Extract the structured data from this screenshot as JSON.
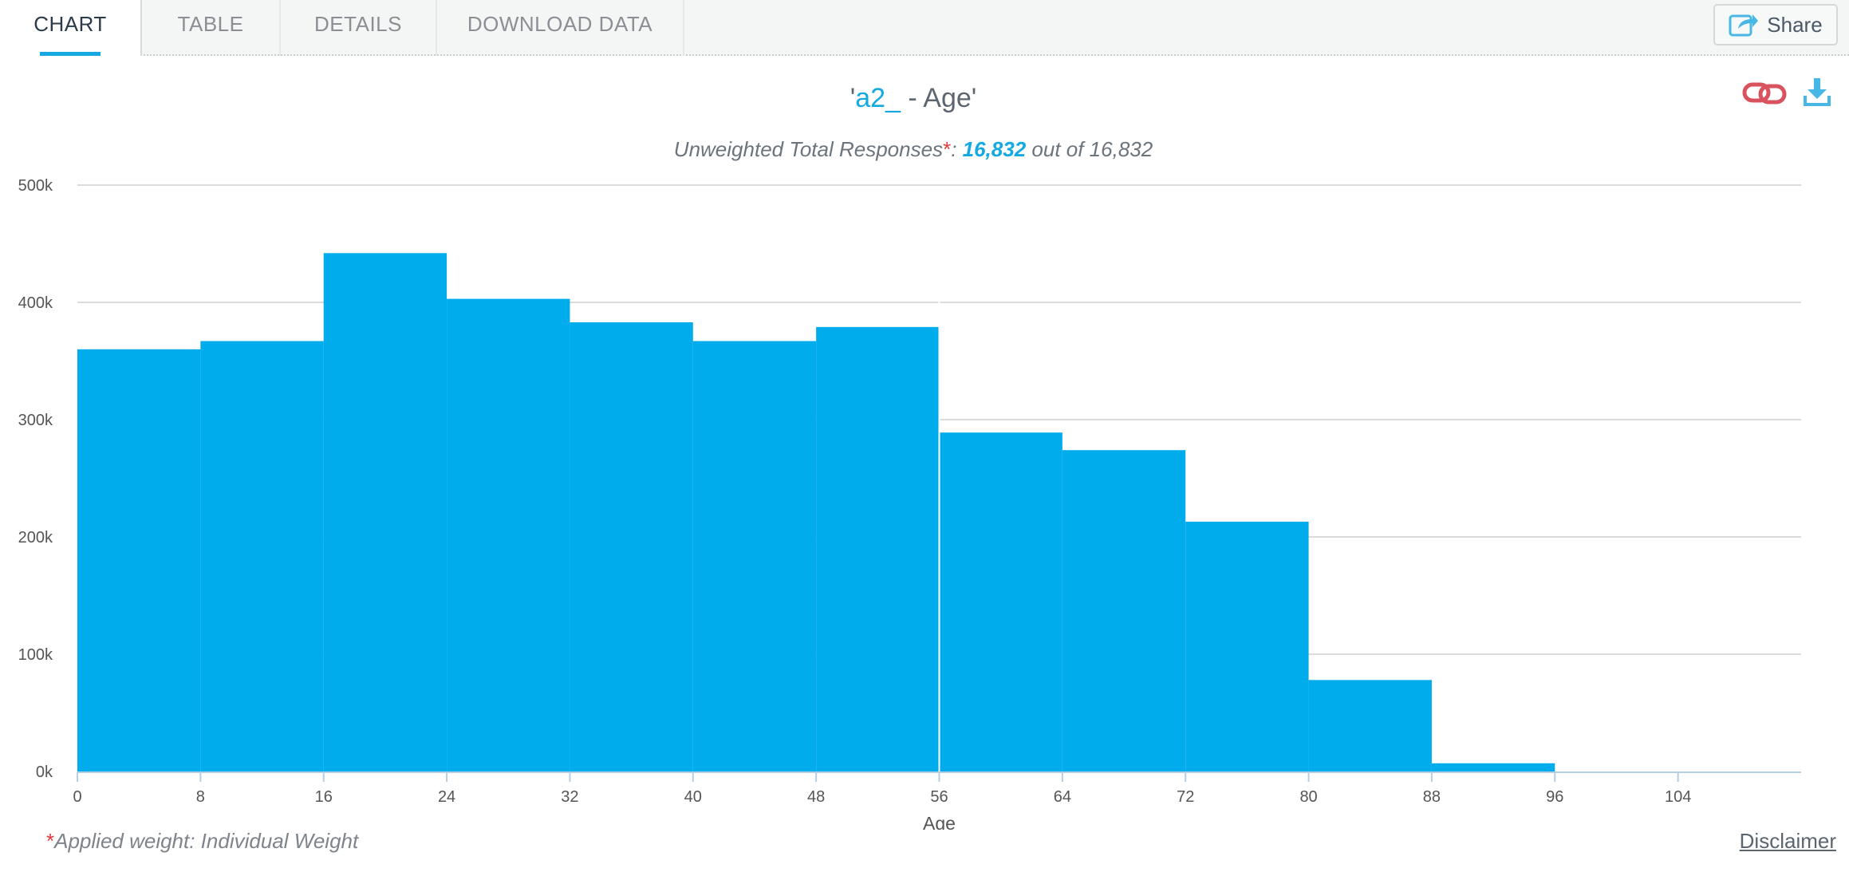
{
  "tabs": [
    {
      "label": "CHART",
      "active": true
    },
    {
      "label": "TABLE",
      "active": false
    },
    {
      "label": "DETAILS",
      "active": false
    },
    {
      "label": "DOWNLOAD DATA",
      "active": false
    }
  ],
  "share_label": "Share",
  "header": {
    "title_prefix": "'",
    "title_var": "a2_",
    "title_suffix": " - Age'",
    "subtitle_prefix": "Unweighted Total Responses",
    "subtitle_star": "*",
    "subtitle_colon": ": ",
    "subtitle_count": "16,832",
    "subtitle_rest": " out of 16,832"
  },
  "icons": {
    "link": "link-icon",
    "download": "download-icon",
    "share": "share-icon"
  },
  "colors": {
    "accent": "#14a9e0",
    "bar": "#00acec",
    "link_icon": "#d9535f",
    "star": "#e03a3a"
  },
  "chart_data": {
    "type": "bar",
    "title": "'a2_ - Age'",
    "subtitle": "Unweighted Total Responses*: 16,832 out of 16,832",
    "xlabel": "Age",
    "ylabel": "",
    "bins": [
      {
        "from": 0,
        "to": 8,
        "value": 360000
      },
      {
        "from": 8,
        "to": 16,
        "value": 367000
      },
      {
        "from": 16,
        "to": 24,
        "value": 442000
      },
      {
        "from": 24,
        "to": 32,
        "value": 403000
      },
      {
        "from": 32,
        "to": 40,
        "value": 383000
      },
      {
        "from": 40,
        "to": 48,
        "value": 367000
      },
      {
        "from": 48,
        "to": 56,
        "value": 379000
      },
      {
        "from": 56,
        "to": 64,
        "value": 289000
      },
      {
        "from": 64,
        "to": 72,
        "value": 274000
      },
      {
        "from": 72,
        "to": 80,
        "value": 213000
      },
      {
        "from": 80,
        "to": 88,
        "value": 78000
      },
      {
        "from": 88,
        "to": 96,
        "value": 7000
      }
    ],
    "x_ticks": [
      "0",
      "8",
      "16",
      "24",
      "32",
      "40",
      "48",
      "56",
      "64",
      "72",
      "80",
      "88",
      "96",
      "104"
    ],
    "y_ticks": [
      {
        "value": 0,
        "label": "0k"
      },
      {
        "value": 100000,
        "label": "100k"
      },
      {
        "value": 200000,
        "label": "200k"
      },
      {
        "value": 300000,
        "label": "300k"
      },
      {
        "value": 400000,
        "label": "400k"
      },
      {
        "value": 500000,
        "label": "500k"
      }
    ],
    "xlim": [
      0,
      112
    ],
    "ylim": [
      0,
      500000
    ],
    "grid": true,
    "highlight_edge": 56
  },
  "footer": {
    "star": "*",
    "note": "Applied weight: Individual Weight",
    "disclaimer": "Disclaimer"
  }
}
